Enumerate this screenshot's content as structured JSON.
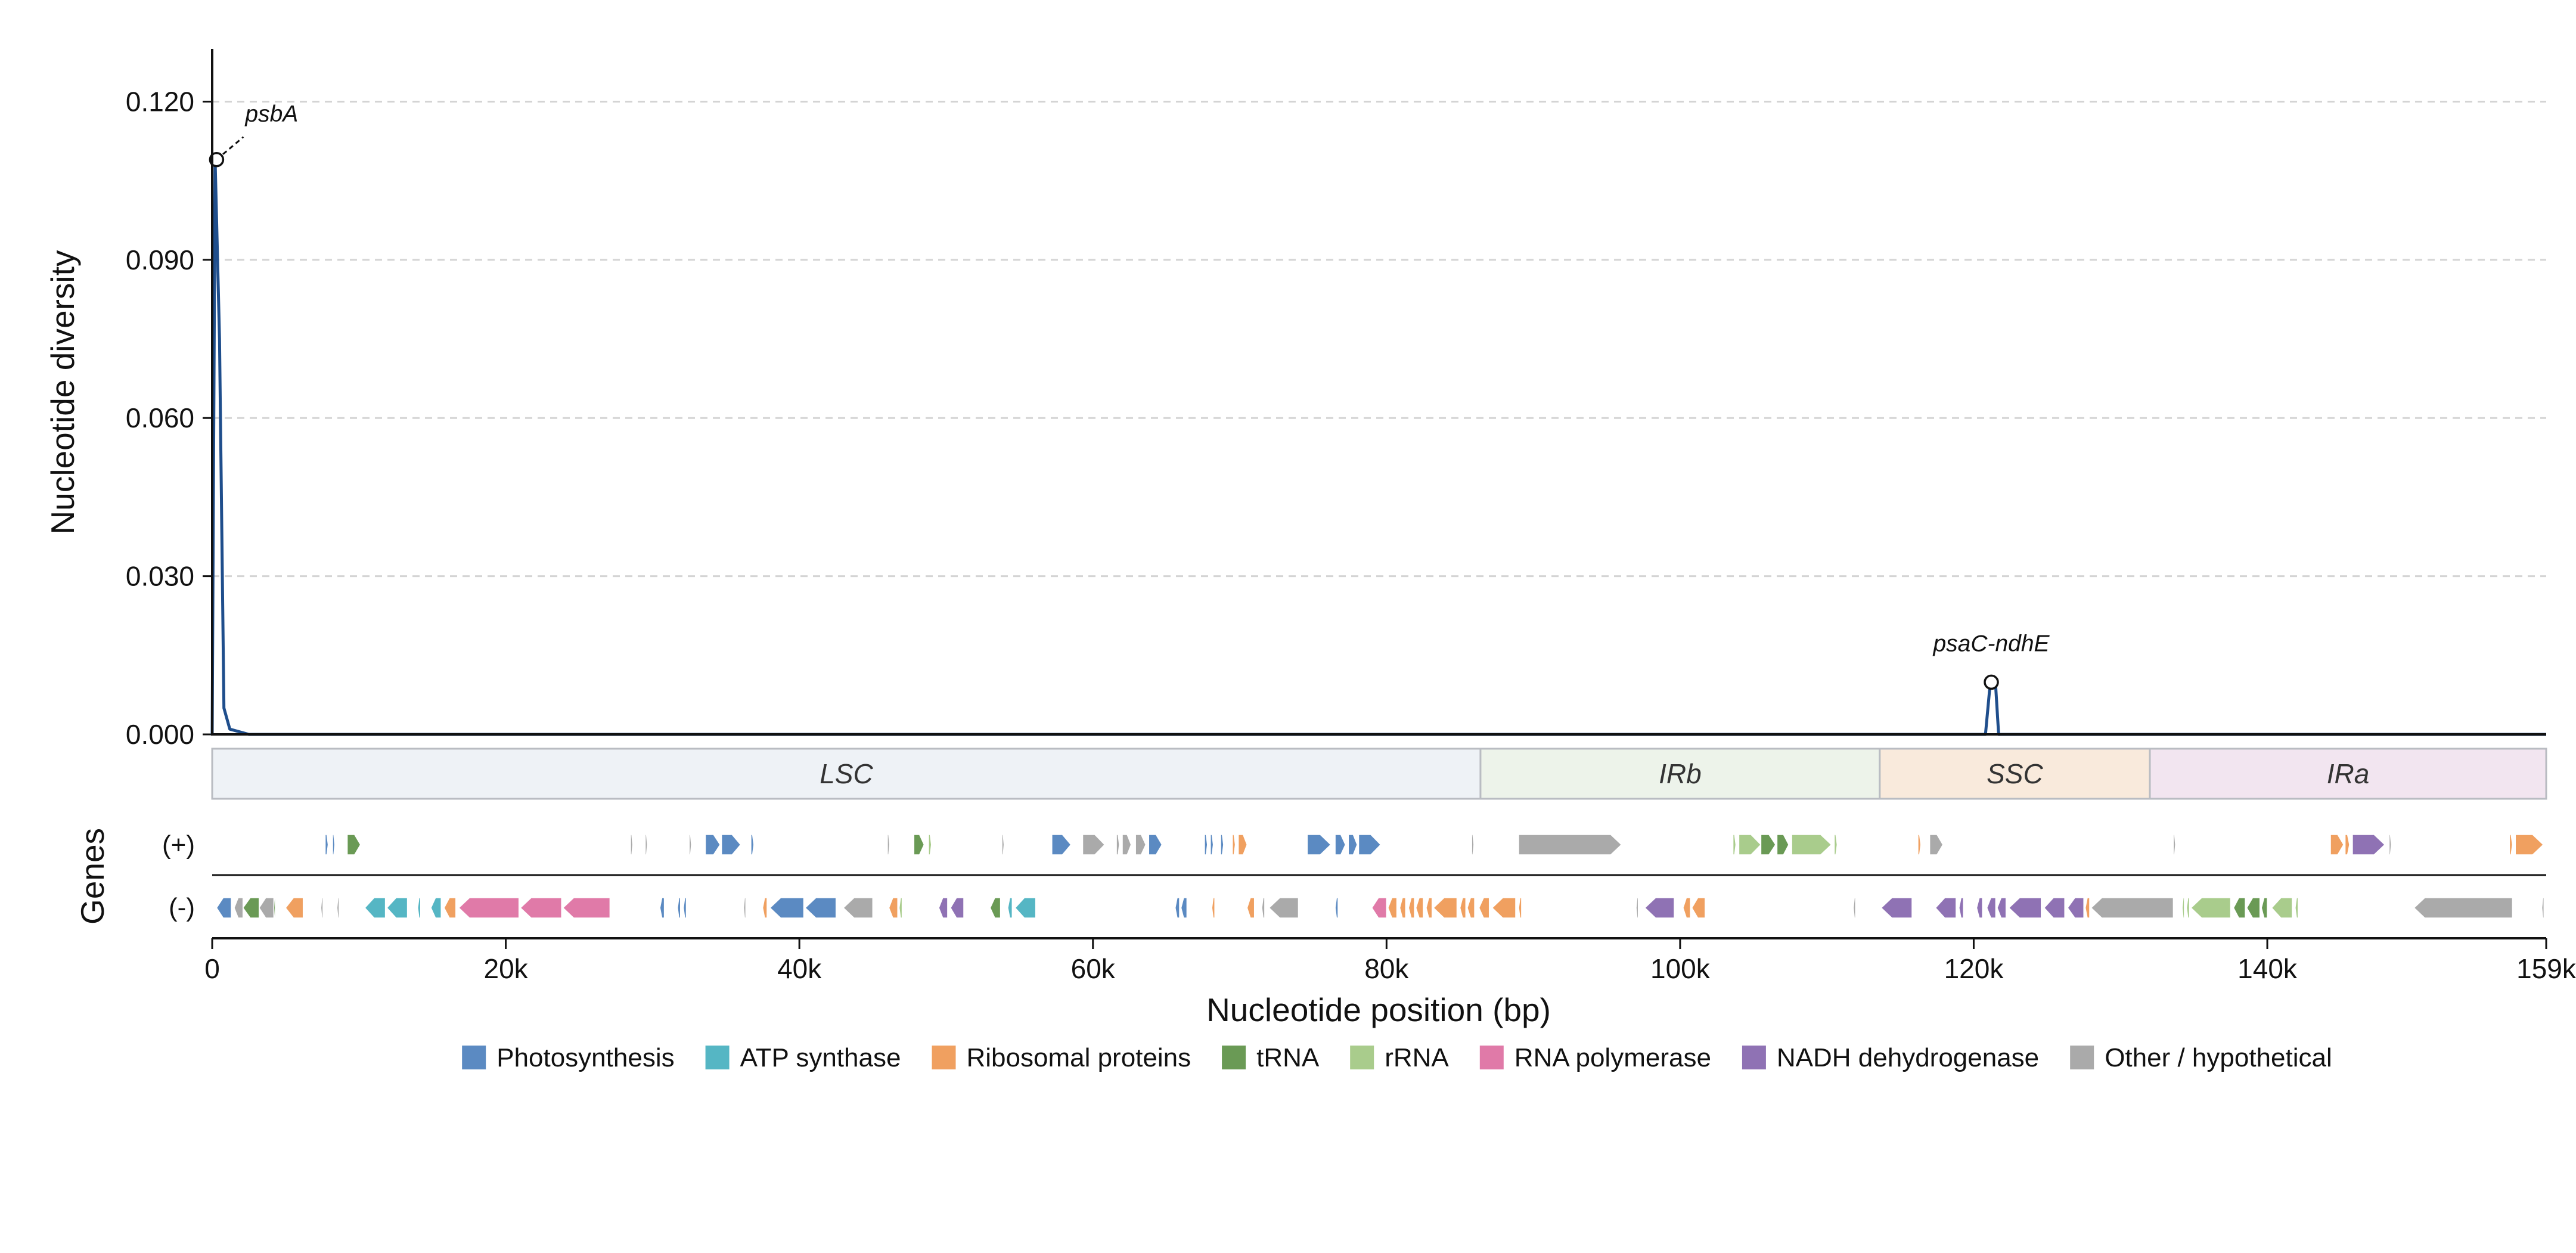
{
  "chart_data": {
    "type": "line",
    "ylabel": "Nucleotide diversity",
    "xlabel": "Nucleotide position (bp)",
    "genes_label": "Genes",
    "plus_label": "(+)",
    "minus_label": "(-)",
    "xlim": [
      0,
      159000
    ],
    "ylim": [
      0,
      0.13
    ],
    "yticks": [
      0,
      0.03,
      0.06,
      0.09,
      0.12
    ],
    "ytick_labels": [
      "0.000",
      "0.030",
      "0.060",
      "0.090",
      "0.120"
    ],
    "xticks": [
      0,
      20000,
      40000,
      60000,
      80000,
      100000,
      120000,
      140000,
      159000
    ],
    "xtick_labels": [
      "0",
      "20k",
      "40k",
      "60k",
      "80k",
      "100k",
      "120k",
      "140k",
      "159k"
    ],
    "grid": "horizontal dashed",
    "line_color": "#1f4e8c",
    "series": [
      {
        "x": [
          0,
          200,
          500,
          800,
          1200,
          2500,
          120800,
          121100,
          121300,
          121500,
          121700,
          159000
        ],
        "y": [
          0,
          0.109,
          0.075,
          0.005,
          0.001,
          0,
          0,
          0.009,
          0.0098,
          0.009,
          0,
          0
        ]
      }
    ],
    "annotations": [
      {
        "label": "psbA",
        "x": 300,
        "y": 0.109
      },
      {
        "label": "psaC-ndhE",
        "x": 121200,
        "y": 0.0099
      }
    ],
    "regions": [
      {
        "name": "LSC",
        "start": 0,
        "end": 86400,
        "color": "#eef2f6"
      },
      {
        "name": "IRb",
        "start": 86400,
        "end": 113600,
        "color": "#edf3ea"
      },
      {
        "name": "SSC",
        "start": 113600,
        "end": 132000,
        "color": "#f9eadc"
      },
      {
        "name": "IRa",
        "start": 132000,
        "end": 159000,
        "color": "#f2e5f0"
      }
    ],
    "legend": [
      {
        "name": "Photosynthesis",
        "color": "#5b8ac2"
      },
      {
        "name": "ATP synthase",
        "color": "#55b6c4"
      },
      {
        "name": "Ribosomal proteins",
        "color": "#f0a060"
      },
      {
        "name": "tRNA",
        "color": "#6a9a55"
      },
      {
        "name": "rRNA",
        "color": "#a9cc8c"
      },
      {
        "name": "RNA polymerase",
        "color": "#e07aa8"
      },
      {
        "name": "NADH dehydrogenase",
        "color": "#8f72b4"
      },
      {
        "name": "Other / hypothetical",
        "color": "#aaaaaa"
      }
    ],
    "genes": {
      "plus": [
        {
          "start": 7700,
          "end": 7900,
          "cat": "Photosynthesis"
        },
        {
          "start": 8200,
          "end": 8350,
          "cat": "Photosynthesis"
        },
        {
          "start": 9200,
          "end": 10100,
          "cat": "tRNA"
        },
        {
          "start": 28500,
          "end": 28650,
          "cat": "Other / hypothetical"
        },
        {
          "start": 29500,
          "end": 29650,
          "cat": "Other / hypothetical"
        },
        {
          "start": 32500,
          "end": 32650,
          "cat": "Other / hypothetical"
        },
        {
          "start": 33600,
          "end": 34600,
          "cat": "Photosynthesis"
        },
        {
          "start": 34700,
          "end": 36000,
          "cat": "Photosynthesis"
        },
        {
          "start": 36700,
          "end": 36900,
          "cat": "Photosynthesis"
        },
        {
          "start": 46000,
          "end": 46150,
          "cat": "Other / hypothetical"
        },
        {
          "start": 47800,
          "end": 48500,
          "cat": "tRNA"
        },
        {
          "start": 48800,
          "end": 49000,
          "cat": "rRNA"
        },
        {
          "start": 53800,
          "end": 53950,
          "cat": "Other / hypothetical"
        },
        {
          "start": 57200,
          "end": 58500,
          "cat": "Photosynthesis"
        },
        {
          "start": 59300,
          "end": 60800,
          "cat": "Other / hypothetical"
        },
        {
          "start": 61600,
          "end": 61800,
          "cat": "Other / hypothetical"
        },
        {
          "start": 62000,
          "end": 62600,
          "cat": "Other / hypothetical"
        },
        {
          "start": 62900,
          "end": 63600,
          "cat": "Other / hypothetical"
        },
        {
          "start": 63800,
          "end": 64700,
          "cat": "Photosynthesis"
        },
        {
          "start": 67600,
          "end": 67800,
          "cat": "Photosynthesis"
        },
        {
          "start": 68000,
          "end": 68200,
          "cat": "Photosynthesis"
        },
        {
          "start": 68700,
          "end": 68900,
          "cat": "Photosynthesis"
        },
        {
          "start": 69500,
          "end": 69700,
          "cat": "Ribosomal proteins"
        },
        {
          "start": 69900,
          "end": 70500,
          "cat": "Ribosomal proteins"
        },
        {
          "start": 74600,
          "end": 76200,
          "cat": "Photosynthesis"
        },
        {
          "start": 76500,
          "end": 77200,
          "cat": "Photosynthesis"
        },
        {
          "start": 77400,
          "end": 78000,
          "cat": "Photosynthesis"
        },
        {
          "start": 78100,
          "end": 79600,
          "cat": "Photosynthesis"
        },
        {
          "start": 85800,
          "end": 85950,
          "cat": "Other / hypothetical"
        },
        {
          "start": 89000,
          "end": 96000,
          "cat": "Other / hypothetical"
        },
        {
          "start": 103600,
          "end": 103800,
          "cat": "rRNA"
        },
        {
          "start": 104000,
          "end": 105500,
          "cat": "rRNA"
        },
        {
          "start": 105500,
          "end": 106500,
          "cat": "tRNA"
        },
        {
          "start": 106600,
          "end": 107400,
          "cat": "tRNA"
        },
        {
          "start": 107600,
          "end": 110300,
          "cat": "rRNA"
        },
        {
          "start": 110500,
          "end": 110700,
          "cat": "rRNA"
        },
        {
          "start": 116200,
          "end": 116400,
          "cat": "Ribosomal proteins"
        },
        {
          "start": 117000,
          "end": 117900,
          "cat": "Other / hypothetical"
        },
        {
          "start": 133600,
          "end": 133750,
          "cat": "Other / hypothetical"
        },
        {
          "start": 144300,
          "end": 145200,
          "cat": "Ribosomal proteins"
        },
        {
          "start": 145300,
          "end": 145600,
          "cat": "Ribosomal proteins"
        },
        {
          "start": 145800,
          "end": 148000,
          "cat": "NADH dehydrogenase"
        },
        {
          "start": 148300,
          "end": 148450,
          "cat": "Other / hypothetical"
        },
        {
          "start": 156500,
          "end": 156700,
          "cat": "Ribosomal proteins"
        },
        {
          "start": 156900,
          "end": 158800,
          "cat": "Ribosomal proteins"
        }
      ],
      "minus": [
        {
          "start": 300,
          "end": 1300,
          "cat": "Photosynthesis"
        },
        {
          "start": 1500,
          "end": 2100,
          "cat": "Other / hypothetical"
        },
        {
          "start": 2100,
          "end": 3200,
          "cat": "tRNA"
        },
        {
          "start": 3200,
          "end": 4200,
          "cat": "Other / hypothetical"
        },
        {
          "start": 4200,
          "end": 4300,
          "cat": "tRNA"
        },
        {
          "start": 5000,
          "end": 6200,
          "cat": "Ribosomal proteins"
        },
        {
          "start": 7400,
          "end": 7550,
          "cat": "Other / hypothetical"
        },
        {
          "start": 8500,
          "end": 8650,
          "cat": "Other / hypothetical"
        },
        {
          "start": 10400,
          "end": 11800,
          "cat": "ATP synthase"
        },
        {
          "start": 11900,
          "end": 13300,
          "cat": "ATP synthase"
        },
        {
          "start": 14000,
          "end": 14200,
          "cat": "ATP synthase"
        },
        {
          "start": 14900,
          "end": 15600,
          "cat": "ATP synthase"
        },
        {
          "start": 15800,
          "end": 16600,
          "cat": "Ribosomal proteins"
        },
        {
          "start": 16800,
          "end": 20900,
          "cat": "RNA polymerase"
        },
        {
          "start": 21000,
          "end": 23800,
          "cat": "RNA polymerase"
        },
        {
          "start": 23900,
          "end": 27100,
          "cat": "RNA polymerase"
        },
        {
          "start": 30500,
          "end": 30800,
          "cat": "Photosynthesis"
        },
        {
          "start": 31700,
          "end": 31900,
          "cat": "Photosynthesis"
        },
        {
          "start": 32100,
          "end": 32300,
          "cat": "Photosynthesis"
        },
        {
          "start": 36200,
          "end": 36350,
          "cat": "Other / hypothetical"
        },
        {
          "start": 37500,
          "end": 37800,
          "cat": "Ribosomal proteins"
        },
        {
          "start": 38000,
          "end": 40300,
          "cat": "Photosynthesis"
        },
        {
          "start": 40400,
          "end": 42500,
          "cat": "Photosynthesis"
        },
        {
          "start": 43000,
          "end": 45000,
          "cat": "Other / hypothetical"
        },
        {
          "start": 46100,
          "end": 46700,
          "cat": "Ribosomal proteins"
        },
        {
          "start": 46800,
          "end": 47000,
          "cat": "rRNA"
        },
        {
          "start": 49500,
          "end": 50100,
          "cat": "NADH dehydrogenase"
        },
        {
          "start": 50300,
          "end": 51200,
          "cat": "NADH dehydrogenase"
        },
        {
          "start": 53000,
          "end": 53700,
          "cat": "tRNA"
        },
        {
          "start": 54200,
          "end": 54500,
          "cat": "ATP synthase"
        },
        {
          "start": 54700,
          "end": 56100,
          "cat": "ATP synthase"
        },
        {
          "start": 65600,
          "end": 65900,
          "cat": "Photosynthesis"
        },
        {
          "start": 66000,
          "end": 66400,
          "cat": "Photosynthesis"
        },
        {
          "start": 68100,
          "end": 68300,
          "cat": "Ribosomal proteins"
        },
        {
          "start": 70500,
          "end": 71000,
          "cat": "Ribosomal proteins"
        },
        {
          "start": 71500,
          "end": 71700,
          "cat": "Other / hypothetical"
        },
        {
          "start": 72000,
          "end": 74000,
          "cat": "Other / hypothetical"
        },
        {
          "start": 76500,
          "end": 76700,
          "cat": "Photosynthesis"
        },
        {
          "start": 79000,
          "end": 80000,
          "cat": "RNA polymerase"
        },
        {
          "start": 80100,
          "end": 80700,
          "cat": "Ribosomal proteins"
        },
        {
          "start": 80900,
          "end": 81300,
          "cat": "Ribosomal proteins"
        },
        {
          "start": 81500,
          "end": 81900,
          "cat": "Ribosomal proteins"
        },
        {
          "start": 82000,
          "end": 82500,
          "cat": "Ribosomal proteins"
        },
        {
          "start": 82700,
          "end": 83100,
          "cat": "Ribosomal proteins"
        },
        {
          "start": 83200,
          "end": 84800,
          "cat": "Ribosomal proteins"
        },
        {
          "start": 85000,
          "end": 85400,
          "cat": "Ribosomal proteins"
        },
        {
          "start": 85500,
          "end": 86000,
          "cat": "Ribosomal proteins"
        },
        {
          "start": 86300,
          "end": 87000,
          "cat": "Ribosomal proteins"
        },
        {
          "start": 87200,
          "end": 88800,
          "cat": "Ribosomal proteins"
        },
        {
          "start": 89000,
          "end": 89200,
          "cat": "Ribosomal proteins"
        },
        {
          "start": 97000,
          "end": 97150,
          "cat": "Other / hypothetical"
        },
        {
          "start": 97600,
          "end": 99600,
          "cat": "NADH dehydrogenase"
        },
        {
          "start": 100200,
          "end": 100700,
          "cat": "Ribosomal proteins"
        },
        {
          "start": 100800,
          "end": 101700,
          "cat": "Ribosomal proteins"
        },
        {
          "start": 111800,
          "end": 111950,
          "cat": "Other / hypothetical"
        },
        {
          "start": 113700,
          "end": 115800,
          "cat": "NADH dehydrogenase"
        },
        {
          "start": 117400,
          "end": 118800,
          "cat": "NADH dehydrogenase"
        },
        {
          "start": 119000,
          "end": 119300,
          "cat": "NADH dehydrogenase"
        },
        {
          "start": 120200,
          "end": 120600,
          "cat": "NADH dehydrogenase"
        },
        {
          "start": 120900,
          "end": 121500,
          "cat": "NADH dehydrogenase"
        },
        {
          "start": 121600,
          "end": 122200,
          "cat": "NADH dehydrogenase"
        },
        {
          "start": 122400,
          "end": 124600,
          "cat": "NADH dehydrogenase"
        },
        {
          "start": 124800,
          "end": 126200,
          "cat": "NADH dehydrogenase"
        },
        {
          "start": 126400,
          "end": 127500,
          "cat": "NADH dehydrogenase"
        },
        {
          "start": 127600,
          "end": 127900,
          "cat": "Ribosomal proteins"
        },
        {
          "start": 128000,
          "end": 133600,
          "cat": "Other / hypothetical"
        },
        {
          "start": 134200,
          "end": 134350,
          "cat": "rRNA"
        },
        {
          "start": 134500,
          "end": 134700,
          "cat": "rRNA"
        },
        {
          "start": 134800,
          "end": 137500,
          "cat": "rRNA"
        },
        {
          "start": 137700,
          "end": 138500,
          "cat": "tRNA"
        },
        {
          "start": 138600,
          "end": 139500,
          "cat": "tRNA"
        },
        {
          "start": 139600,
          "end": 140000,
          "cat": "tRNA"
        },
        {
          "start": 140300,
          "end": 141700,
          "cat": "rRNA"
        },
        {
          "start": 141900,
          "end": 142100,
          "cat": "rRNA"
        },
        {
          "start": 150000,
          "end": 156700,
          "cat": "Other / hypothetical"
        },
        {
          "start": 158700,
          "end": 158850,
          "cat": "Other / hypothetical"
        }
      ]
    }
  }
}
